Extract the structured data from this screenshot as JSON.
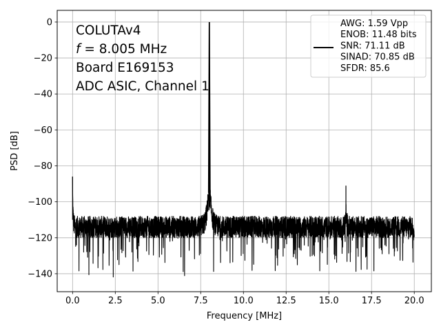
{
  "chart_data": {
    "type": "line",
    "xlabel": "Frequency [MHz]",
    "ylabel": "PSD [dB]",
    "xlim": [
      -0.9,
      21.0
    ],
    "ylim": [
      -150,
      6.5
    ],
    "xticks": [
      0.0,
      2.5,
      5.0,
      7.5,
      10.0,
      12.5,
      15.0,
      17.5,
      20.0
    ],
    "xtick_labels": [
      "0.0",
      "2.5",
      "5.0",
      "7.5",
      "10.0",
      "12.5",
      "15.0",
      "17.5",
      "20.0"
    ],
    "yticks": [
      0,
      -20,
      -40,
      -60,
      -80,
      -100,
      -120,
      -140
    ],
    "ytick_labels": [
      "0",
      "−20",
      "−40",
      "−60",
      "−80",
      "−100",
      "−120",
      "−140"
    ],
    "grid": true,
    "annotation_lines": [
      {
        "prefix": "COLUTAv4",
        "suffix": ""
      },
      {
        "prefix": "f",
        "suffix": " = 8.005 MHz"
      },
      {
        "prefix": "Board E169153",
        "suffix": ""
      },
      {
        "prefix": "ADC ASIC, Channel  1",
        "suffix": ""
      }
    ],
    "legend": {
      "position": "top-right",
      "lines": [
        "AWG: 1.59 Vpp",
        "ENOB: 11.48 bits",
        "SNR: 71.11 dB",
        "SINAD: 70.85 dB",
        "SFDR: 85.6"
      ]
    },
    "series": [
      {
        "color": "#000000",
        "noise_floor_db": -114,
        "noise_min_db": -142,
        "noise_max_db": -101,
        "features": [
          {
            "kind": "dc",
            "x": 0.0,
            "y": -86
          },
          {
            "kind": "carrier",
            "x": 8.005,
            "y": 0
          },
          {
            "kind": "skirt",
            "x": 8.0,
            "y": -87
          },
          {
            "kind": "harmonic",
            "x": 16.0,
            "y": -91
          }
        ],
        "x_range": [
          0.0,
          20.0
        ]
      }
    ]
  }
}
